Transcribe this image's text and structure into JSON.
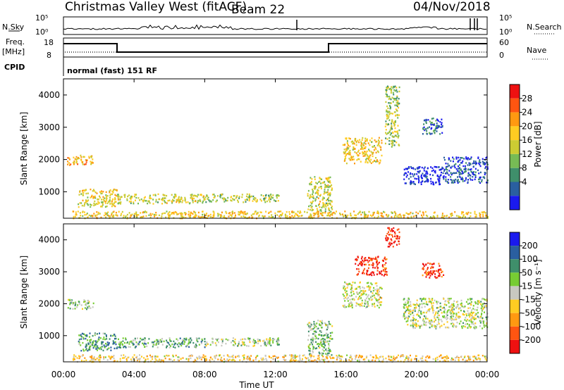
{
  "header": {
    "station": "Christmas Valley West (fitACF)",
    "beam": "Beam 22",
    "date": "04/Nov/2018"
  },
  "status_panel": {
    "nsky_label": "N.Sky",
    "nsearch_label": "N.Search",
    "nsky_ticks": [
      "10^5",
      "10^0"
    ],
    "nsearch_ticks": [
      "10^5",
      "10^0"
    ],
    "freq_label_1": "Freq.",
    "freq_label_2": "[MHz]",
    "freq_ticks": [
      "18",
      "8"
    ],
    "nave_label": "Nave",
    "nave_ticks": [
      "60",
      "0"
    ],
    "cpid_label": "CPID",
    "cpid_text": "normal (fast) 151 RF"
  },
  "chart_data": [
    {
      "type": "heatmap",
      "name": "power",
      "ylabel": "Slant Range [km]",
      "xlabel": "",
      "x_range_hours": [
        0,
        24
      ],
      "ylim": [
        180,
        4500
      ],
      "y_ticks": [
        "1000",
        "2000",
        "3000",
        "4000"
      ],
      "colorbar_label": "Power [dB]",
      "colorbar_ticks": [
        "28",
        "24",
        "20",
        "16",
        "12",
        "8",
        "4"
      ],
      "colorbar_colors": [
        "#ee1111",
        "#ff5511",
        "#ff9911",
        "#ffcc22",
        "#cccc33",
        "#77bb55",
        "#3f8f6b",
        "#2a5fa0",
        "#1a1aee"
      ],
      "features": [
        {
          "t0": 0.2,
          "t1": 1.7,
          "r0": 1850,
          "r1": 2150,
          "level": 0.35
        },
        {
          "t0": 0.8,
          "t1": 3.0,
          "r0": 550,
          "r1": 1100,
          "level": 0.45
        },
        {
          "t0": 3.0,
          "t1": 8.0,
          "r0": 650,
          "r1": 950,
          "level": 0.5
        },
        {
          "t0": 8.0,
          "t1": 12.2,
          "r0": 700,
          "r1": 950,
          "level": 0.55
        },
        {
          "t0": 13.8,
          "t1": 15.2,
          "r0": 400,
          "r1": 1500,
          "level": 0.5
        },
        {
          "t0": 15.8,
          "t1": 18.0,
          "r0": 1900,
          "r1": 2700,
          "level": 0.4
        },
        {
          "t0": 18.2,
          "t1": 19.0,
          "r0": 2400,
          "r1": 4300,
          "level": 0.55
        },
        {
          "t0": 19.2,
          "t1": 21.5,
          "r0": 1250,
          "r1": 1800,
          "level": 0.95
        },
        {
          "t0": 20.3,
          "t1": 21.5,
          "r0": 2800,
          "r1": 3300,
          "level": 0.8
        },
        {
          "t0": 21.5,
          "t1": 24.0,
          "r0": 1300,
          "r1": 2100,
          "level": 0.85
        },
        {
          "t0": 0.5,
          "t1": 24.0,
          "r0": 200,
          "r1": 420,
          "level": 0.4
        }
      ]
    },
    {
      "type": "heatmap",
      "name": "velocity",
      "ylabel": "Slant Range [km]",
      "xlabel": "Time UT",
      "x_range_hours": [
        0,
        24
      ],
      "x_ticks": [
        "00:00",
        "04:00",
        "08:00",
        "12:00",
        "16:00",
        "20:00",
        "00:00"
      ],
      "ylim": [
        180,
        4500
      ],
      "y_ticks": [
        "1000",
        "2000",
        "3000",
        "4000"
      ],
      "colorbar_label": "Velocity [m s^-1]",
      "colorbar_ticks": [
        "200",
        "100",
        "50",
        "15",
        "-15",
        "-50",
        "-100",
        "-200"
      ],
      "colorbar_colors": [
        "#1a1aee",
        "#2a5fa0",
        "#3f8f6b",
        "#77cc33",
        "#c8c8c0",
        "#ffcc22",
        "#ff9911",
        "#ff5511",
        "#ee1111"
      ],
      "features": [
        {
          "t0": 0.2,
          "t1": 1.7,
          "r0": 1850,
          "r1": 2150,
          "level": 0.45
        },
        {
          "t0": 0.8,
          "t1": 3.0,
          "r0": 550,
          "r1": 1100,
          "level": 0.3
        },
        {
          "t0": 3.0,
          "t1": 8.0,
          "r0": 650,
          "r1": 950,
          "level": 0.35
        },
        {
          "t0": 8.0,
          "t1": 12.2,
          "r0": 700,
          "r1": 950,
          "level": 0.45
        },
        {
          "t0": 13.8,
          "t1": 15.2,
          "r0": 400,
          "r1": 1500,
          "level": 0.4
        },
        {
          "t0": 15.8,
          "t1": 18.0,
          "r0": 1900,
          "r1": 2700,
          "level": 0.5
        },
        {
          "t0": 16.5,
          "t1": 18.3,
          "r0": 2900,
          "r1": 3500,
          "level": 0.9
        },
        {
          "t0": 18.2,
          "t1": 19.0,
          "r0": 3800,
          "r1": 4400,
          "level": 0.92
        },
        {
          "t0": 19.2,
          "t1": 24.0,
          "r0": 1250,
          "r1": 2200,
          "level": 0.47
        },
        {
          "t0": 20.3,
          "t1": 21.5,
          "r0": 2800,
          "r1": 3300,
          "level": 0.9
        },
        {
          "t0": 0.5,
          "t1": 24.0,
          "r0": 200,
          "r1": 420,
          "level": 0.6
        }
      ]
    }
  ]
}
